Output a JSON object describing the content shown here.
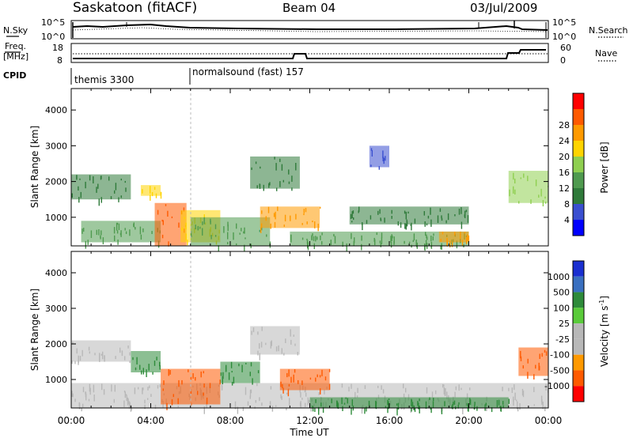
{
  "header": {
    "title": "Saskatoon (fitACF)",
    "beam": "Beam 04",
    "date": "03/Jul/2009"
  },
  "panels": {
    "nsky": {
      "label": "N.Sky",
      "right_label": "N.Search",
      "yticks": [
        "10^5",
        "10^0"
      ]
    },
    "freq": {
      "label_line1": "Freq.",
      "label_line2": "[MHz]",
      "right_label": "Nave",
      "yticks_left": [
        "18",
        "8"
      ],
      "yticks_right": [
        "60",
        "0"
      ]
    },
    "cpid": {
      "label": "CPID",
      "programs": [
        "themis 3300",
        "normalsound (fast) 157"
      ]
    }
  },
  "colors": {
    "power": [
      "#0000ff",
      "#3a4fd0",
      "#2f7a3a",
      "#4f9a4f",
      "#8fcf50",
      "#ffd400",
      "#ff9a00",
      "#ff5a00",
      "#ff0000"
    ],
    "velocity": [
      "#1a2fd0",
      "#3a70c0",
      "#2e8b3a",
      "#5acb3a",
      "#b8b8b8",
      "#b8b8b8",
      "#ff9900",
      "#ff5a00",
      "#ff0000"
    ]
  },
  "chart_data": [
    {
      "type": "heatmap",
      "title": "",
      "xlabel": "",
      "ylabel": "Slant Range [km]",
      "xlim": [
        "00:00",
        "00:00"
      ],
      "ylim": [
        200,
        4600
      ],
      "x_ticks": [
        "00:00",
        "04:00",
        "08:00",
        "12:00",
        "16:00",
        "20:00",
        "00:00"
      ],
      "y_ticks": [
        1000,
        2000,
        3000,
        4000
      ],
      "colorbar": {
        "label": "Power [dB]",
        "ticks": [
          "4",
          "8",
          "12",
          "16",
          "20",
          "24",
          "28"
        ]
      },
      "regions": [
        {
          "t": [
            0.5,
            4.5
          ],
          "r": [
            300,
            900
          ],
          "v": 12
        },
        {
          "t": [
            0.0,
            3.0
          ],
          "r": [
            1500,
            2200
          ],
          "v": 8
        },
        {
          "t": [
            3.5,
            4.5
          ],
          "r": [
            1600,
            1900
          ],
          "v": 20
        },
        {
          "t": [
            4.2,
            5.8
          ],
          "r": [
            200,
            1400
          ],
          "v": 28
        },
        {
          "t": [
            5.5,
            7.5
          ],
          "r": [
            300,
            1200
          ],
          "v": 20
        },
        {
          "t": [
            6.0,
            10.0
          ],
          "r": [
            200,
            1000
          ],
          "v": 12
        },
        {
          "t": [
            9.5,
            12.5
          ],
          "r": [
            700,
            1300
          ],
          "v": 24
        },
        {
          "t": [
            11.0,
            20.0
          ],
          "r": [
            200,
            600
          ],
          "v": 12
        },
        {
          "t": [
            14.0,
            20.0
          ],
          "r": [
            800,
            1300
          ],
          "v": 8
        },
        {
          "t": [
            18.5,
            20.0
          ],
          "r": [
            300,
            600
          ],
          "v": 24
        },
        {
          "t": [
            22.0,
            24.0
          ],
          "r": [
            1400,
            2300
          ],
          "v": 16
        },
        {
          "t": [
            9.0,
            11.5
          ],
          "r": [
            1800,
            2700
          ],
          "v": 8
        },
        {
          "t": [
            15.0,
            16.0
          ],
          "r": [
            2400,
            3000
          ],
          "v": 4
        }
      ]
    },
    {
      "type": "heatmap",
      "title": "",
      "xlabel": "Time UT",
      "ylabel": "Slant Range [km]",
      "xlim": [
        "00:00",
        "00:00"
      ],
      "ylim": [
        200,
        4600
      ],
      "x_ticks": [
        "00:00",
        "04:00",
        "08:00",
        "12:00",
        "16:00",
        "20:00",
        "00:00"
      ],
      "y_ticks": [
        1000,
        2000,
        3000,
        4000
      ],
      "colorbar": {
        "label": "Velocity [m s^-1]",
        "ticks": [
          "1000",
          "500",
          "100",
          "25",
          "-25",
          "-100",
          "-500",
          "-1000"
        ]
      },
      "regions": [
        {
          "t": [
            0.0,
            24.0
          ],
          "r": [
            200,
            900
          ],
          "v": 0
        },
        {
          "t": [
            4.5,
            7.5
          ],
          "r": [
            300,
            1300
          ],
          "v": -300
        },
        {
          "t": [
            7.5,
            9.5
          ],
          "r": [
            900,
            1500
          ],
          "v": 150
        },
        {
          "t": [
            10.5,
            13.0
          ],
          "r": [
            700,
            1300
          ],
          "v": -300
        },
        {
          "t": [
            12.0,
            22.0
          ],
          "r": [
            200,
            500
          ],
          "v": 100
        },
        {
          "t": [
            22.5,
            24.0
          ],
          "r": [
            1100,
            1900
          ],
          "v": -400
        },
        {
          "t": [
            0.0,
            3.0
          ],
          "r": [
            1500,
            2100
          ],
          "v": 0
        },
        {
          "t": [
            3.0,
            4.5
          ],
          "r": [
            1200,
            1800
          ],
          "v": 100
        },
        {
          "t": [
            9.0,
            11.5
          ],
          "r": [
            1700,
            2500
          ],
          "v": 0
        }
      ]
    }
  ]
}
